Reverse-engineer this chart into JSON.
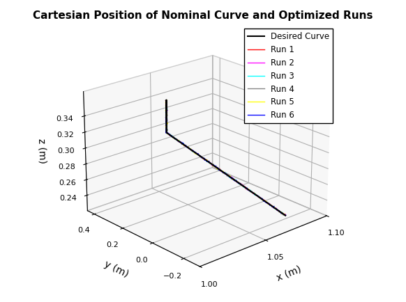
{
  "title": "Cartesian Position of Nominal Curve and Optimized Runs",
  "xlabel": "x (m)",
  "ylabel": "y (m)",
  "zlabel": "z (m)",
  "xlim": [
    1.0,
    1.1
  ],
  "ylim": [
    -0.3,
    0.45
  ],
  "zlim": [
    0.22,
    0.37
  ],
  "xticks": [
    1.0,
    1.05,
    1.1
  ],
  "yticks": [
    -0.2,
    0.0,
    0.2,
    0.4
  ],
  "zticks": [
    0.24,
    0.26,
    0.28,
    0.3,
    0.32,
    0.34
  ],
  "legend_labels": [
    "Desired Curve",
    "Run 1",
    "Run 2",
    "Run 3",
    "Run 4",
    "Run 5",
    "Run 6"
  ],
  "legend_colors": [
    "#000000",
    "#ff0000",
    "#ff00ff",
    "#00ffff",
    "#808080",
    "#ffff00",
    "#0000ff"
  ],
  "background_color": "#ffffff",
  "elev": 22,
  "azim": -132,
  "n_points": 300,
  "title_fontsize": 11,
  "legend_fontsize": 8.5,
  "figwidth": 5.82,
  "figheight": 4.34,
  "dpi": 100
}
